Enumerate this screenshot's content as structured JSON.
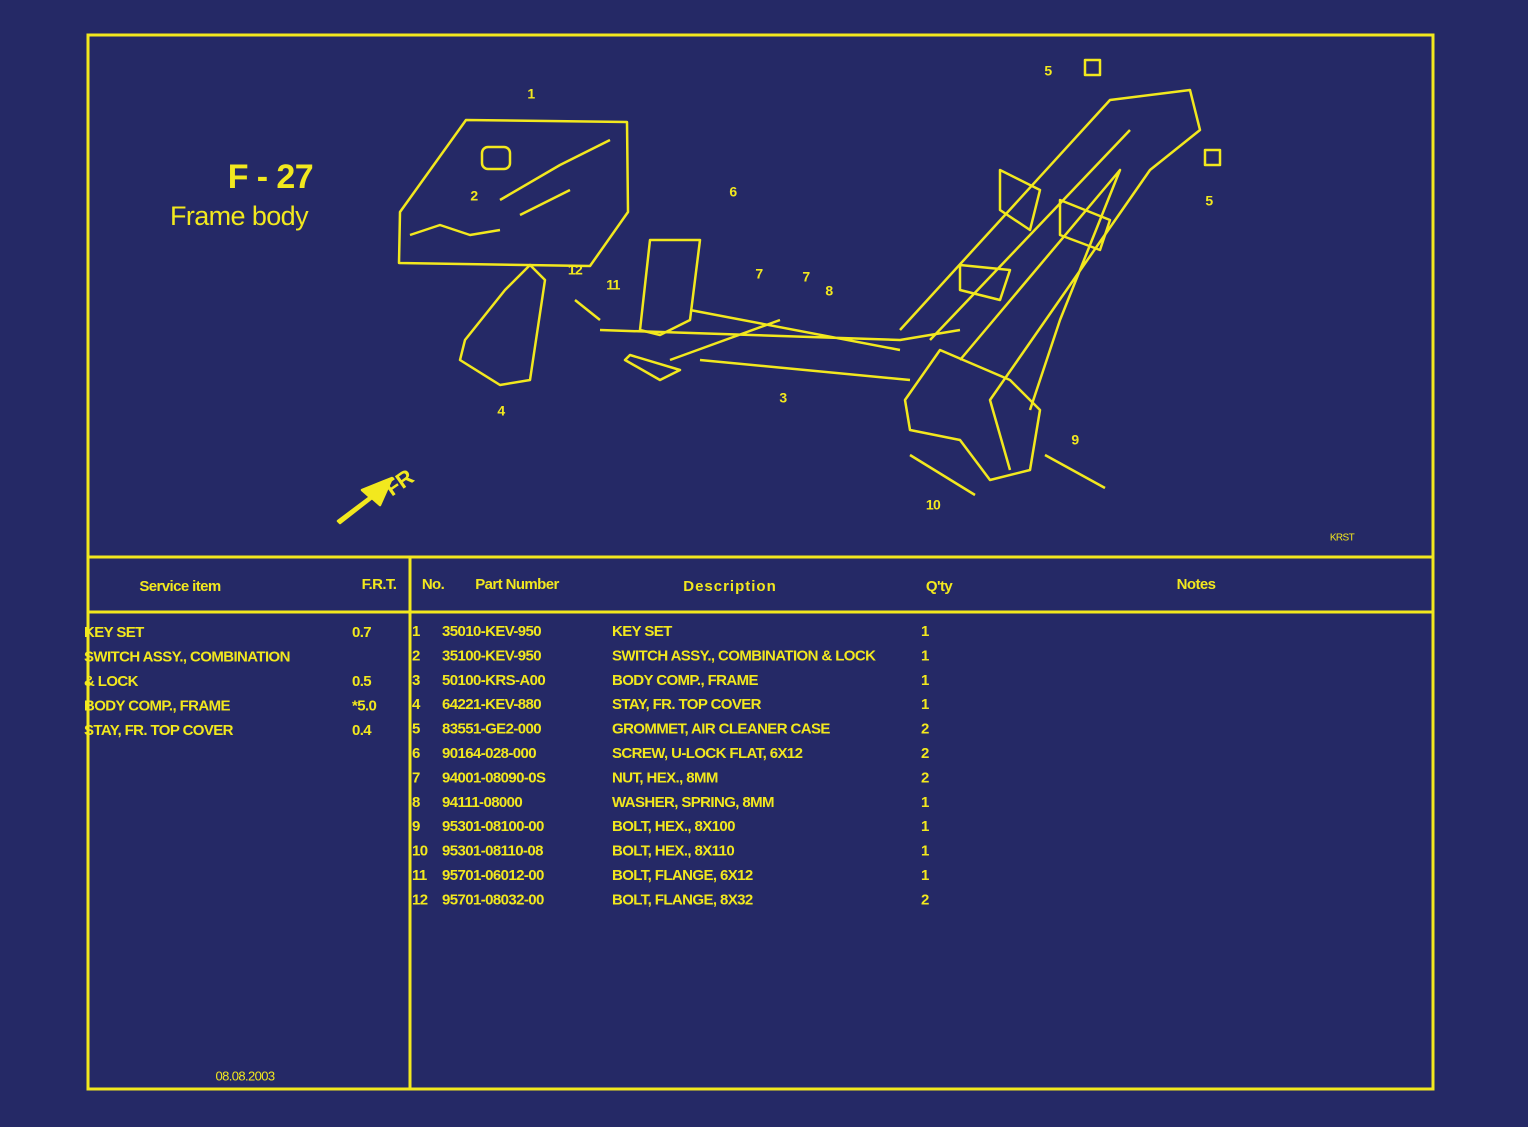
{
  "header": {
    "code": "F - 27",
    "title": "Frame body"
  },
  "diagram": {
    "callouts": [
      "1",
      "2",
      "3",
      "4",
      "5",
      "5",
      "6",
      "7",
      "7",
      "8",
      "9",
      "10",
      "11",
      "12"
    ],
    "direction": "FR",
    "ref": "KRST"
  },
  "service_table": {
    "columns": [
      "Service item",
      "F.R.T."
    ],
    "rows": [
      [
        "KEY SET",
        "0.7"
      ],
      [
        "SWITCH ASSY., COMBINATION",
        ""
      ],
      [
        "& LOCK",
        "0.5"
      ],
      [
        "BODY COMP., FRAME",
        "*5.0"
      ],
      [
        "STAY, FR. TOP COVER",
        "0.4"
      ]
    ]
  },
  "parts_table": {
    "columns": [
      "No.",
      "Part Number",
      "Description",
      "Q'ty",
      "Notes"
    ],
    "rows": [
      [
        "1",
        "35010-KEV-950",
        "KEY SET",
        "1"
      ],
      [
        "2",
        "35100-KEV-950",
        "SWITCH ASSY., COMBINATION & LOCK",
        "1"
      ],
      [
        "3",
        "50100-KRS-A00",
        "BODY COMP., FRAME",
        "1"
      ],
      [
        "4",
        "64221-KEV-880",
        "STAY, FR. TOP COVER",
        "1"
      ],
      [
        "5",
        "83551-GE2-000",
        "GROMMET, AIR CLEANER CASE",
        "2"
      ],
      [
        "6",
        "90164-028-000",
        "SCREW, U-LOCK FLAT, 6X12",
        "2"
      ],
      [
        "7",
        "94001-08090-0S",
        "NUT, HEX., 8MM",
        "2"
      ],
      [
        "8",
        "94111-08000",
        "WASHER, SPRING, 8MM",
        "1"
      ],
      [
        "9",
        "95301-08100-00",
        "BOLT, HEX., 8X100",
        "1"
      ],
      [
        "10",
        "95301-08110-08",
        "BOLT, HEX., 8X110",
        "1"
      ],
      [
        "11",
        "95701-06012-00",
        "BOLT, FLANGE, 6X12",
        "1"
      ],
      [
        "12",
        "95701-08032-00",
        "BOLT, FLANGE, 8X32",
        "2"
      ]
    ]
  },
  "footer": {
    "date": "08.08.2003"
  }
}
